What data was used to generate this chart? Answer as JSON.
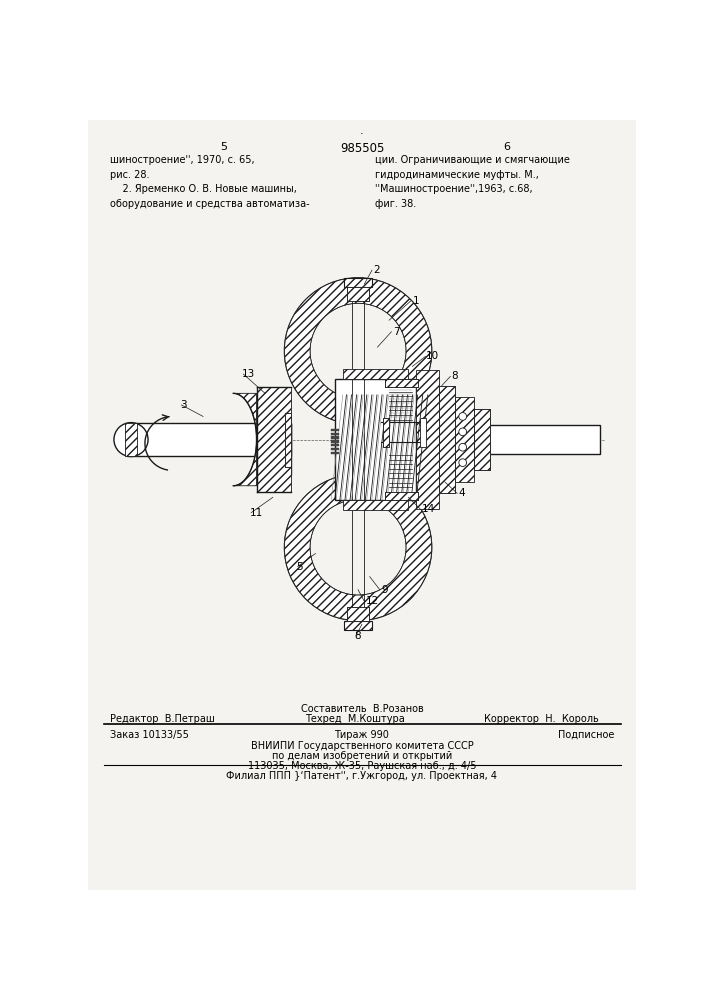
{
  "page_width": 7.07,
  "page_height": 10.0,
  "bg_color": "#f5f3ef",
  "draw_color": "#1a1a1a",
  "page_num_left": "5",
  "page_num_center": "985505",
  "page_num_right": "6",
  "top_left_text": "шиностроение'', 1970, с. 65,\nрис. 28.\n    2. Яременко О. В. Новые машины,\nоборудование и средства автоматиза-",
  "top_right_text": "ции. Ограничивающие и смягчающие\nгидродинамические муфты. М.,\n''Машиностроение'',1963, с.68,\nфиг. 38.",
  "editor_above": "Составитель  В.Розанов",
  "editor_left": "Редактор  В.Петраш",
  "editor_center": "Техред  М.Коштура",
  "editor_right": "Корректор  Н.  Король",
  "order_left": "Заказ 10133/55",
  "order_center": "Тираж 990",
  "order_right": "Подписное",
  "vniip1": "ВНИИПИ Государственного комитета СССР",
  "vniip2": "по делам изобретений и открытий",
  "vniip3": "113035, Москва, Ж-35, Раушская наб., д. 4/5",
  "filial": "Филиал ППП }‘Патент'', г.Ужгород, ул. Проектная, 4"
}
